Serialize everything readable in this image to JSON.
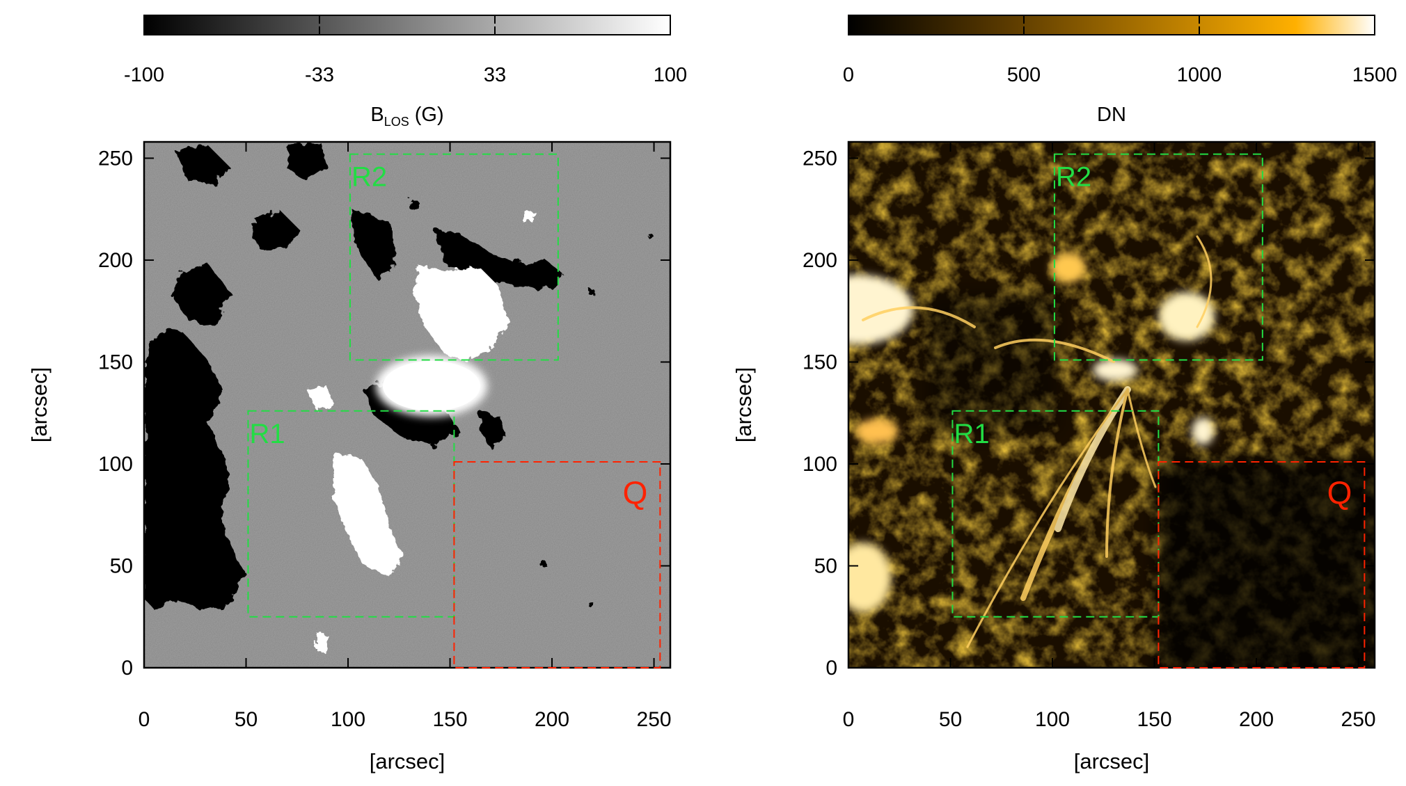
{
  "chart_data": [
    {
      "type": "heatmap",
      "panel": "magnetogram",
      "colorbar": {
        "ticks": [
          "-100",
          "-33",
          "33",
          "100"
        ],
        "range": [
          -100,
          100
        ],
        "label_main": "B",
        "label_sub": "LOS",
        "label_unit": " (G)",
        "colormap": [
          "#000000",
          "#ffffff"
        ]
      },
      "xlabel": "[arcsec]",
      "ylabel": "[arcsec]",
      "xlim": [
        0,
        258
      ],
      "ylim": [
        0,
        258
      ],
      "xticks": [
        "0",
        "50",
        "100",
        "150",
        "200",
        "250"
      ],
      "yticks": [
        "0",
        "50",
        "100",
        "150",
        "200",
        "250"
      ],
      "regions": [
        {
          "label": "R2",
          "color": "#22dd44",
          "x": [
            101,
            203
          ],
          "y": [
            151,
            252
          ]
        },
        {
          "label": "R1",
          "color": "#22dd44",
          "x": [
            51,
            152
          ],
          "y": [
            25,
            126
          ]
        },
        {
          "label": "Q",
          "color": "#ff2200",
          "x": [
            152,
            253
          ],
          "y": [
            0,
            101
          ]
        }
      ]
    },
    {
      "type": "heatmap",
      "panel": "euv-intensity",
      "colorbar": {
        "ticks": [
          "0",
          "500",
          "1000",
          "1500"
        ],
        "range": [
          0,
          1500
        ],
        "label_main": "DN",
        "label_sub": "",
        "label_unit": "",
        "colormap": [
          "#000000",
          "#5a3a00",
          "#b57a00",
          "#ffb000",
          "#ffffff"
        ]
      },
      "xlabel": "[arcsec]",
      "ylabel": "[arcsec]",
      "xlim": [
        0,
        258
      ],
      "ylim": [
        0,
        258
      ],
      "xticks": [
        "0",
        "50",
        "100",
        "150",
        "200",
        "250"
      ],
      "yticks": [
        "0",
        "50",
        "100",
        "150",
        "200",
        "250"
      ],
      "regions": [
        {
          "label": "R2",
          "color": "#22dd44",
          "x": [
            101,
            203
          ],
          "y": [
            151,
            252
          ]
        },
        {
          "label": "R1",
          "color": "#22dd44",
          "x": [
            51,
            152
          ],
          "y": [
            25,
            126
          ]
        },
        {
          "label": "Q",
          "color": "#ff2200",
          "x": [
            152,
            253
          ],
          "y": [
            0,
            101
          ]
        }
      ]
    }
  ]
}
